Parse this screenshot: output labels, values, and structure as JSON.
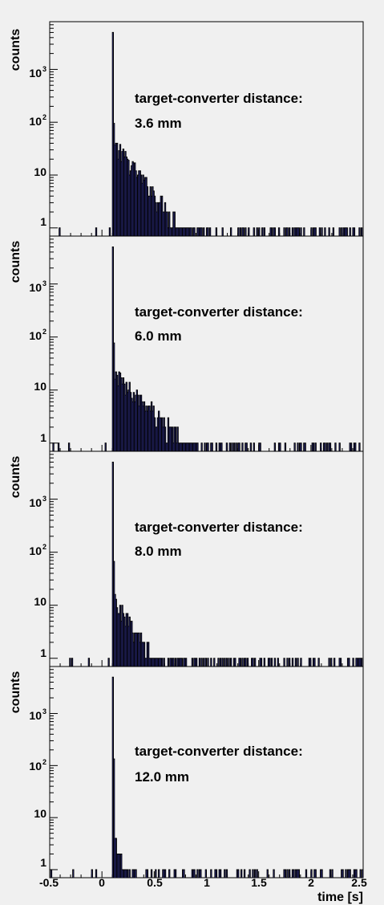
{
  "chart_data": [
    {
      "type": "histogram",
      "ylabel": "counts",
      "xlabel": "",
      "y_scale": "log",
      "ylim": [
        0.7,
        8000
      ],
      "xlim": [
        -0.5,
        2.5
      ],
      "ytick_labels": [
        "1",
        "10",
        "10",
        "10"
      ],
      "ytick_exponents": [
        "",
        "",
        "2",
        "3"
      ],
      "annotation": [
        "target-converter distance:",
        "3.6 mm"
      ],
      "peak_x": 0.1,
      "peak_value": 5000,
      "tail_scale": 40,
      "tail_decay": 0.18,
      "bar_color": "#4f4fe0"
    },
    {
      "type": "histogram",
      "ylabel": "counts",
      "xlabel": "",
      "y_scale": "log",
      "ylim": [
        0.7,
        8000
      ],
      "xlim": [
        -0.5,
        2.5
      ],
      "ytick_labels": [
        "1",
        "10",
        "10",
        "10"
      ],
      "ytick_exponents": [
        "",
        "",
        "2",
        "3"
      ],
      "annotation": [
        "target-converter distance:",
        "6.0 mm"
      ],
      "peak_x": 0.1,
      "peak_value": 5000,
      "tail_scale": 22,
      "tail_decay": 0.22,
      "bar_color": "#4f4fe0"
    },
    {
      "type": "histogram",
      "ylabel": "counts",
      "xlabel": "",
      "y_scale": "log",
      "ylim": [
        0.7,
        8000
      ],
      "xlim": [
        -0.5,
        2.5
      ],
      "ytick_labels": [
        "1",
        "10",
        "10",
        "10"
      ],
      "ytick_exponents": [
        "",
        "",
        "2",
        "3"
      ],
      "annotation": [
        "target-converter distance:",
        "8.0 mm"
      ],
      "peak_x": 0.1,
      "peak_value": 5000,
      "tail_scale": 14,
      "tail_decay": 0.14,
      "bar_color": "#4f4fe0"
    },
    {
      "type": "histogram",
      "ylabel": "counts",
      "xlabel": "time [s]",
      "y_scale": "log",
      "ylim": [
        0.7,
        8000
      ],
      "xlim": [
        -0.5,
        2.5
      ],
      "xticks": [
        "-0.5",
        "0",
        "0.5",
        "1",
        "1.5",
        "2",
        "2.5"
      ],
      "ytick_labels": [
        "1",
        "10",
        "10",
        "10"
      ],
      "ytick_exponents": [
        "",
        "",
        "2",
        "3"
      ],
      "annotation": [
        "target-converter distance:",
        "12.0 mm"
      ],
      "peak_x": 0.1,
      "peak_value": 5000,
      "tail_scale": 6,
      "tail_decay": 0.06,
      "bar_color": "#4f4fe0"
    }
  ]
}
